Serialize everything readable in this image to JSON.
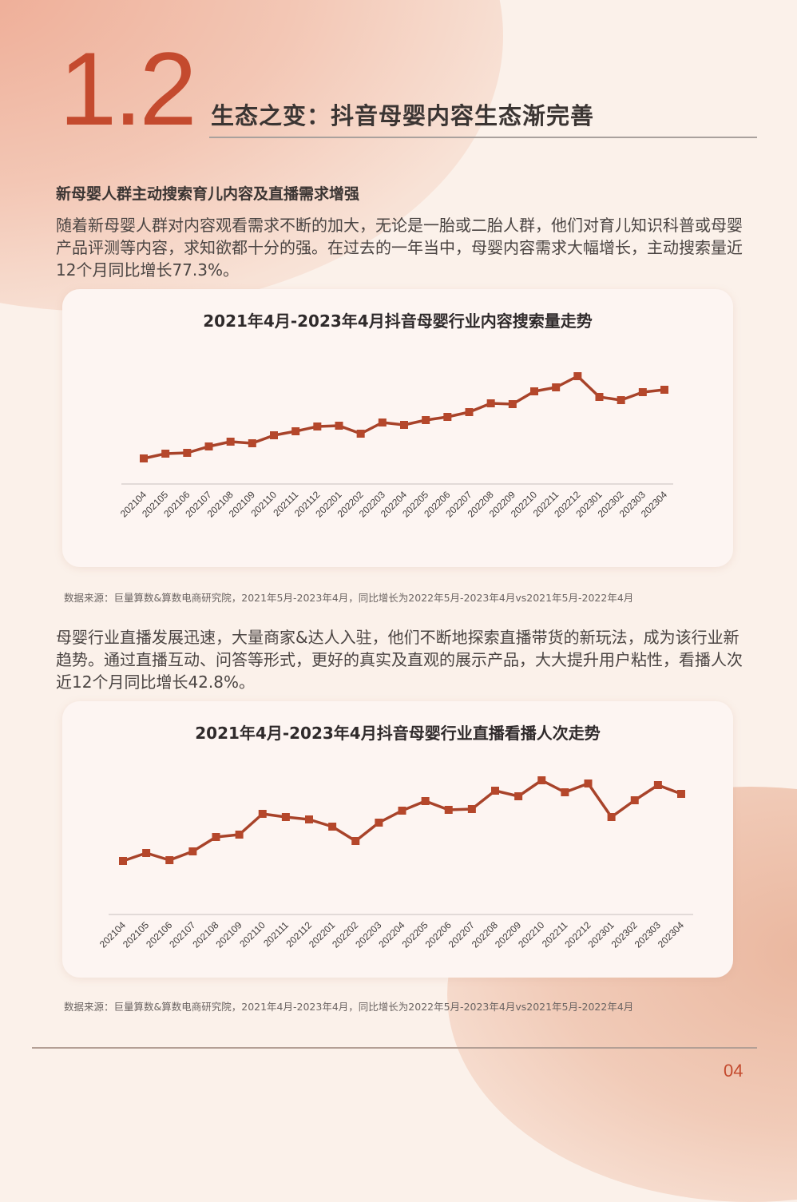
{
  "header": {
    "section_number": "1.2",
    "section_title": "生态之变：抖音母婴内容生态渐完善"
  },
  "intro": {
    "sub_heading": "新母婴人群主动搜索育儿内容及直播需求增强",
    "paragraph": "随着新母婴人群对内容观看需求不断的加大，无论是一胎或二胎人群，他们对育儿知识科普或母婴产品评测等内容，求知欲都十分的强。在过去的一年当中，母婴内容需求大幅增长，主动搜索量近12个月同比增长77.3%。"
  },
  "live": {
    "paragraph": "母婴行业直播发展迅速，大量商家&达人入驻，他们不断地探索直播带货的新玩法，成为该行业新趋势。通过直播互动、问答等形式，更好的真实及直观的展示产品，大大提升用户粘性，看播人次近12个月同比增长42.8%。"
  },
  "sources": {
    "chart1": "数据来源：巨量算数&算数电商研究院，2021年5月-2023年4月，同比增长为2022年5月-2023年4月vs2021年5月-2022年4月",
    "chart2": "数据来源：巨量算数&算数电商研究院，2021年4月-2023年4月，同比增长为2022年5月-2023年4月vs2021年5月-2022年4月"
  },
  "footer": {
    "page_number": "04"
  },
  "colors": {
    "accent": "#c44a2e",
    "line": "#a8432a",
    "marker": "#b5472b",
    "title_text": "#3b3533"
  },
  "chart_data": [
    {
      "type": "line",
      "title": "2021年4月-2023年4月抖音母婴行业内容搜索量走势",
      "xlabel": "",
      "ylabel": "",
      "y_axis_shown": false,
      "grid": false,
      "legend": "none",
      "value_unit": "relative index (no y-axis labels shown)",
      "categories": [
        "202104",
        "202105",
        "202106",
        "202107",
        "202108",
        "202109",
        "202110",
        "202111",
        "202112",
        "202201",
        "202202",
        "202203",
        "202204",
        "202205",
        "202206",
        "202207",
        "202208",
        "202209",
        "202210",
        "202211",
        "202212",
        "202301",
        "202302",
        "202303",
        "202304"
      ],
      "series": [
        {
          "name": "内容搜索量",
          "values": [
            32,
            38,
            39,
            47,
            53,
            51,
            61,
            66,
            72,
            73,
            63,
            77,
            74,
            80,
            84,
            90,
            101,
            100,
            116,
            121,
            135,
            109,
            105,
            115,
            118
          ]
        }
      ],
      "ylim": [
        0,
        150
      ]
    },
    {
      "type": "line",
      "title": "2021年4月-2023年4月抖音母婴行业直播看播人次走势",
      "xlabel": "",
      "ylabel": "",
      "y_axis_shown": false,
      "grid": false,
      "legend": "none",
      "value_unit": "relative index (no y-axis labels shown)",
      "categories": [
        "202104",
        "202105",
        "202106",
        "202107",
        "202108",
        "202109",
        "202110",
        "202111",
        "202112",
        "202201",
        "202202",
        "202203",
        "202204",
        "202205",
        "202206",
        "202207",
        "202208",
        "202209",
        "202210",
        "202211",
        "202212",
        "202301",
        "202302",
        "202303",
        "202304"
      ],
      "series": [
        {
          "name": "直播看播人次",
          "values": [
            67,
            77,
            68,
            79,
            97,
            100,
            126,
            122,
            119,
            110,
            92,
            115,
            130,
            142,
            131,
            132,
            155,
            148,
            168,
            153,
            164,
            122,
            143,
            162,
            151
          ]
        }
      ],
      "ylim": [
        0,
        180
      ]
    }
  ]
}
